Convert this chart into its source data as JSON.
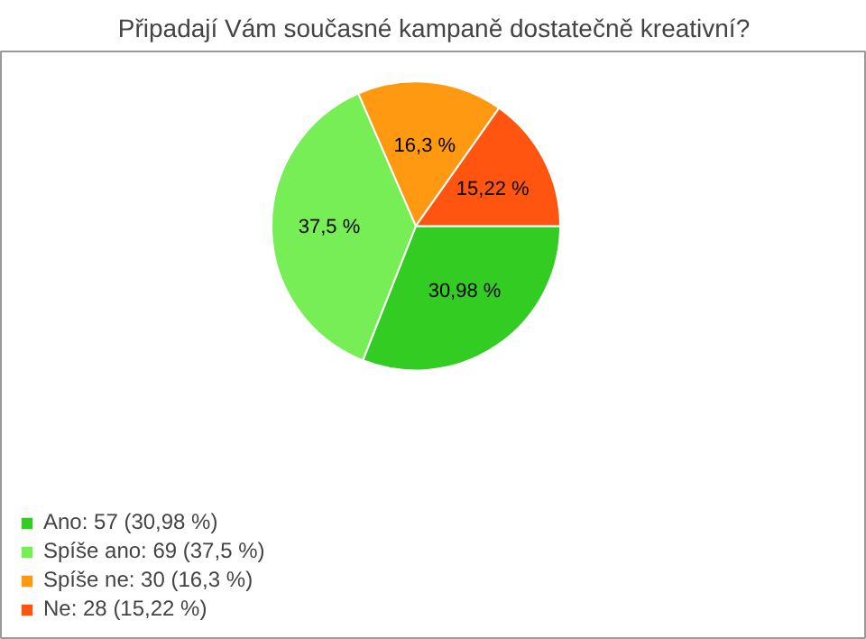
{
  "chart_data": {
    "type": "pie",
    "title": "Připadají Vám současné kampaně dostatečně kreativní?",
    "categories": [
      "Ano: 57 (30,98 %)",
      "Spíše ano: 69 (37,5 %)",
      "Spíše ne: 30 (16,3 %)",
      "Ne: 28 (15,22 %)"
    ],
    "values": [
      30.98,
      37.5,
      16.3,
      15.22
    ],
    "colors": [
      "#33cc22",
      "#77ee55",
      "#ff9911",
      "#ff5511"
    ],
    "value_labels": [
      "30,98 %",
      "37,5 %",
      "16,3 %",
      "15,22 %"
    ],
    "legend": "bottom left"
  }
}
